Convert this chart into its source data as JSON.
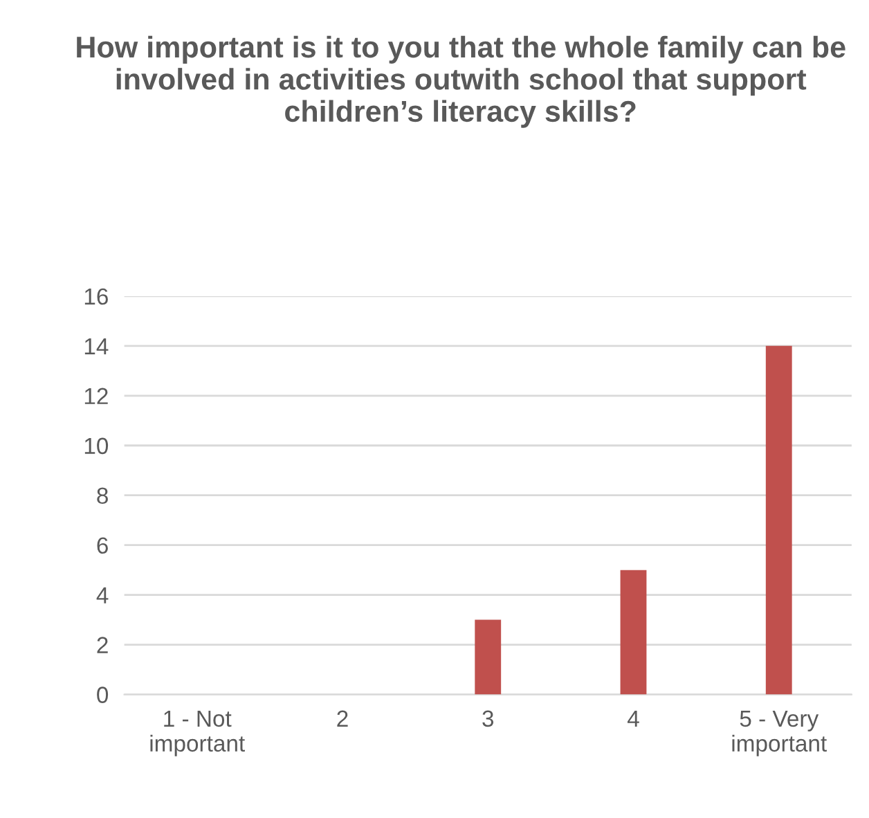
{
  "chart_data": {
    "type": "bar",
    "title": "How important is it to you that the whole family can be involved in activities outwith school that support children’s literacy skills?",
    "categories": [
      "1 - Not important",
      "2",
      "3",
      "4",
      "5 - Very important"
    ],
    "values": [
      0,
      0,
      3,
      5,
      14
    ],
    "color": "#c0504d",
    "ylim": [
      0,
      16
    ],
    "yticks": [
      0,
      2,
      4,
      6,
      8,
      10,
      12,
      14,
      16
    ],
    "grid": "y"
  }
}
